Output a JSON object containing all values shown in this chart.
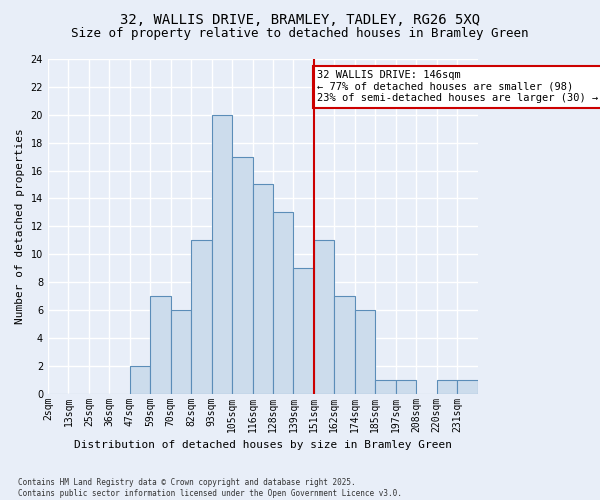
{
  "title_line1": "32, WALLIS DRIVE, BRAMLEY, TADLEY, RG26 5XQ",
  "title_line2": "Size of property relative to detached houses in Bramley Green",
  "xlabel": "Distribution of detached houses by size in Bramley Green",
  "ylabel": "Number of detached properties",
  "footnote": "Contains HM Land Registry data © Crown copyright and database right 2025.\nContains public sector information licensed under the Open Government Licence v3.0.",
  "bin_labels": [
    "2sqm",
    "13sqm",
    "25sqm",
    "36sqm",
    "47sqm",
    "59sqm",
    "70sqm",
    "82sqm",
    "93sqm",
    "105sqm",
    "116sqm",
    "128sqm",
    "139sqm",
    "151sqm",
    "162sqm",
    "174sqm",
    "185sqm",
    "197sqm",
    "208sqm",
    "220sqm",
    "231sqm"
  ],
  "bar_heights": [
    0,
    0,
    0,
    0,
    2,
    7,
    6,
    11,
    20,
    17,
    15,
    13,
    9,
    11,
    7,
    6,
    1,
    1,
    0,
    1,
    1
  ],
  "bar_color": "#ccdcec",
  "bar_edge_color": "#5b8db8",
  "annotation_text": "32 WALLIS DRIVE: 146sqm\n← 77% of detached houses are smaller (98)\n23% of semi-detached houses are larger (30) →",
  "annotation_box_facecolor": "#ffffff",
  "annotation_box_edgecolor": "#cc0000",
  "vline_color": "#cc0000",
  "vline_x_index": 13.0,
  "ylim": [
    0,
    24
  ],
  "yticks": [
    0,
    2,
    4,
    6,
    8,
    10,
    12,
    14,
    16,
    18,
    20,
    22,
    24
  ],
  "bg_color": "#e8eef8",
  "grid_color": "#ffffff",
  "title_fontsize": 10,
  "subtitle_fontsize": 9,
  "annotation_fontsize": 7.5,
  "ylabel_fontsize": 8,
  "xlabel_fontsize": 8,
  "tick_fontsize": 7,
  "footnote_fontsize": 5.5
}
